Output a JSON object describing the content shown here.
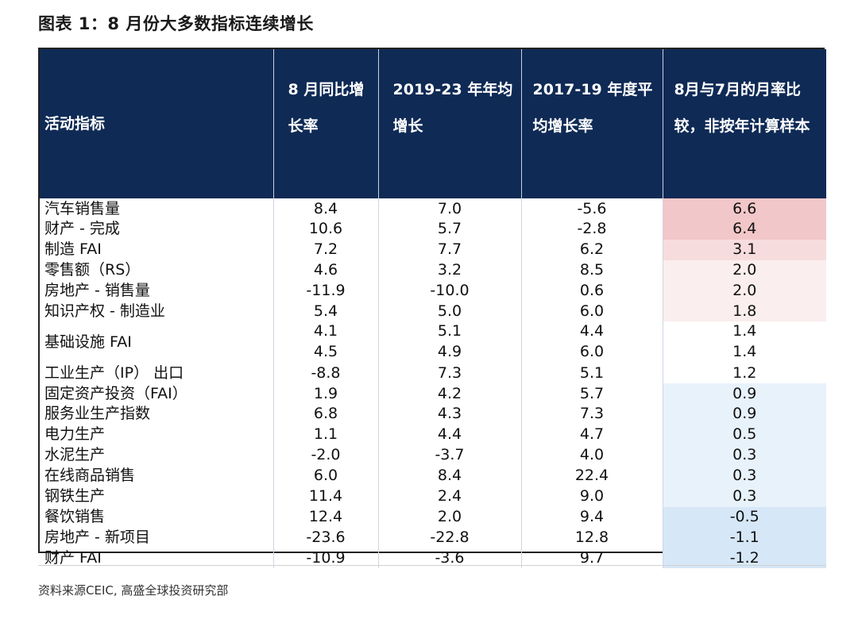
{
  "title": "图表 1：8 月份大多数指标连续增长",
  "source": "资料来源CEIC, 高盛全球投资研究部",
  "colors": {
    "header_bg": "#0f2a55",
    "header_text": "#ffffff",
    "positive_strong": "#f2c7c9",
    "positive_mid": "#f7dcdd",
    "positive_light": "#fbeeee",
    "neutral": "#ffffff",
    "negative_light": "#e8f2fb",
    "negative_mid": "#d6e7f7"
  },
  "chart_data": {
    "type": "table",
    "columns": [
      "活动指标",
      "8 月同比增长率",
      "2019-23 年年均增长",
      "2017-19 年度平均增长率",
      "8月与7月的月率比较，非按年计算样本"
    ],
    "rows": [
      {
        "name": "汽车销售量",
        "values": [
          [
            "8.4"
          ],
          [
            "7.0"
          ],
          [
            "-5.6"
          ],
          [
            "6.6"
          ]
        ],
        "mom": 6.6
      },
      {
        "name": "财产 - 完成",
        "values": [
          [
            "10.6"
          ],
          [
            "5.7"
          ],
          [
            "-2.8"
          ],
          [
            "6.4"
          ]
        ],
        "mom": 6.4
      },
      {
        "name": "制造 FAI",
        "values": [
          [
            "7.2"
          ],
          [
            "7.7"
          ],
          [
            "6.2"
          ],
          [
            "3.1"
          ]
        ],
        "mom": 3.1
      },
      {
        "name": "零售额（RS）",
        "values": [
          [
            "4.6"
          ],
          [
            "3.2"
          ],
          [
            "8.5"
          ],
          [
            "2.0"
          ]
        ],
        "mom": 2.0
      },
      {
        "name": "房地产 - 销售量",
        "values": [
          [
            "-11.9"
          ],
          [
            "-10.0"
          ],
          [
            "0.6"
          ],
          [
            "2.0"
          ]
        ],
        "mom": 2.0
      },
      {
        "name": "知识产权 - 制造业",
        "values": [
          [
            "5.4"
          ],
          [
            "5.0"
          ],
          [
            "6.0"
          ],
          [
            "1.8"
          ]
        ],
        "mom": 1.8
      },
      {
        "name": "基础设施 FAI",
        "values": [
          [
            "4.1",
            "4.5"
          ],
          [
            "5.1",
            "4.9"
          ],
          [
            "4.4",
            "6.0"
          ],
          [
            "1.4",
            "1.4"
          ]
        ],
        "mom": 1.4
      },
      {
        "name": "工业生产（IP） 出口",
        "values": [
          [
            "-8.8"
          ],
          [
            "7.3"
          ],
          [
            "5.1"
          ],
          [
            "1.2"
          ]
        ],
        "mom": 1.2
      },
      {
        "name": "固定资产投资（FAI）",
        "values": [
          [
            "1.9"
          ],
          [
            "4.2"
          ],
          [
            "5.7"
          ],
          [
            "0.9"
          ]
        ],
        "mom": 0.9
      },
      {
        "name": "服务业生产指数",
        "values": [
          [
            "6.8"
          ],
          [
            "4.3"
          ],
          [
            "7.3"
          ],
          [
            "0.9"
          ]
        ],
        "mom": 0.9
      },
      {
        "name": "电力生产",
        "values": [
          [
            "1.1"
          ],
          [
            "4.4"
          ],
          [
            "4.7"
          ],
          [
            "0.5"
          ]
        ],
        "mom": 0.5
      },
      {
        "name": "水泥生产",
        "values": [
          [
            "-2.0"
          ],
          [
            "-3.7"
          ],
          [
            "4.0"
          ],
          [
            "0.3"
          ]
        ],
        "mom": 0.3
      },
      {
        "name": "在线商品销售",
        "values": [
          [
            "6.0"
          ],
          [
            "8.4"
          ],
          [
            "22.4"
          ],
          [
            "0.3"
          ]
        ],
        "mom": 0.3
      },
      {
        "name": "钢铁生产",
        "values": [
          [
            "11.4"
          ],
          [
            "2.4"
          ],
          [
            "9.0"
          ],
          [
            "0.3"
          ]
        ],
        "mom": 0.3
      },
      {
        "name": "餐饮销售",
        "values": [
          [
            "12.4"
          ],
          [
            "2.0"
          ],
          [
            "9.4"
          ],
          [
            "-0.5"
          ]
        ],
        "mom": -0.5
      },
      {
        "name": "房地产 - 新项目",
        "values": [
          [
            "-23.6"
          ],
          [
            "-22.8"
          ],
          [
            "12.8"
          ],
          [
            "-1.1"
          ]
        ],
        "mom": -1.1
      },
      {
        "name": "财产 FAI",
        "values": [
          [
            "-10.9"
          ],
          [
            "-3.6"
          ],
          [
            "9.7"
          ],
          [
            "-1.2"
          ]
        ],
        "mom": -1.2
      }
    ]
  }
}
